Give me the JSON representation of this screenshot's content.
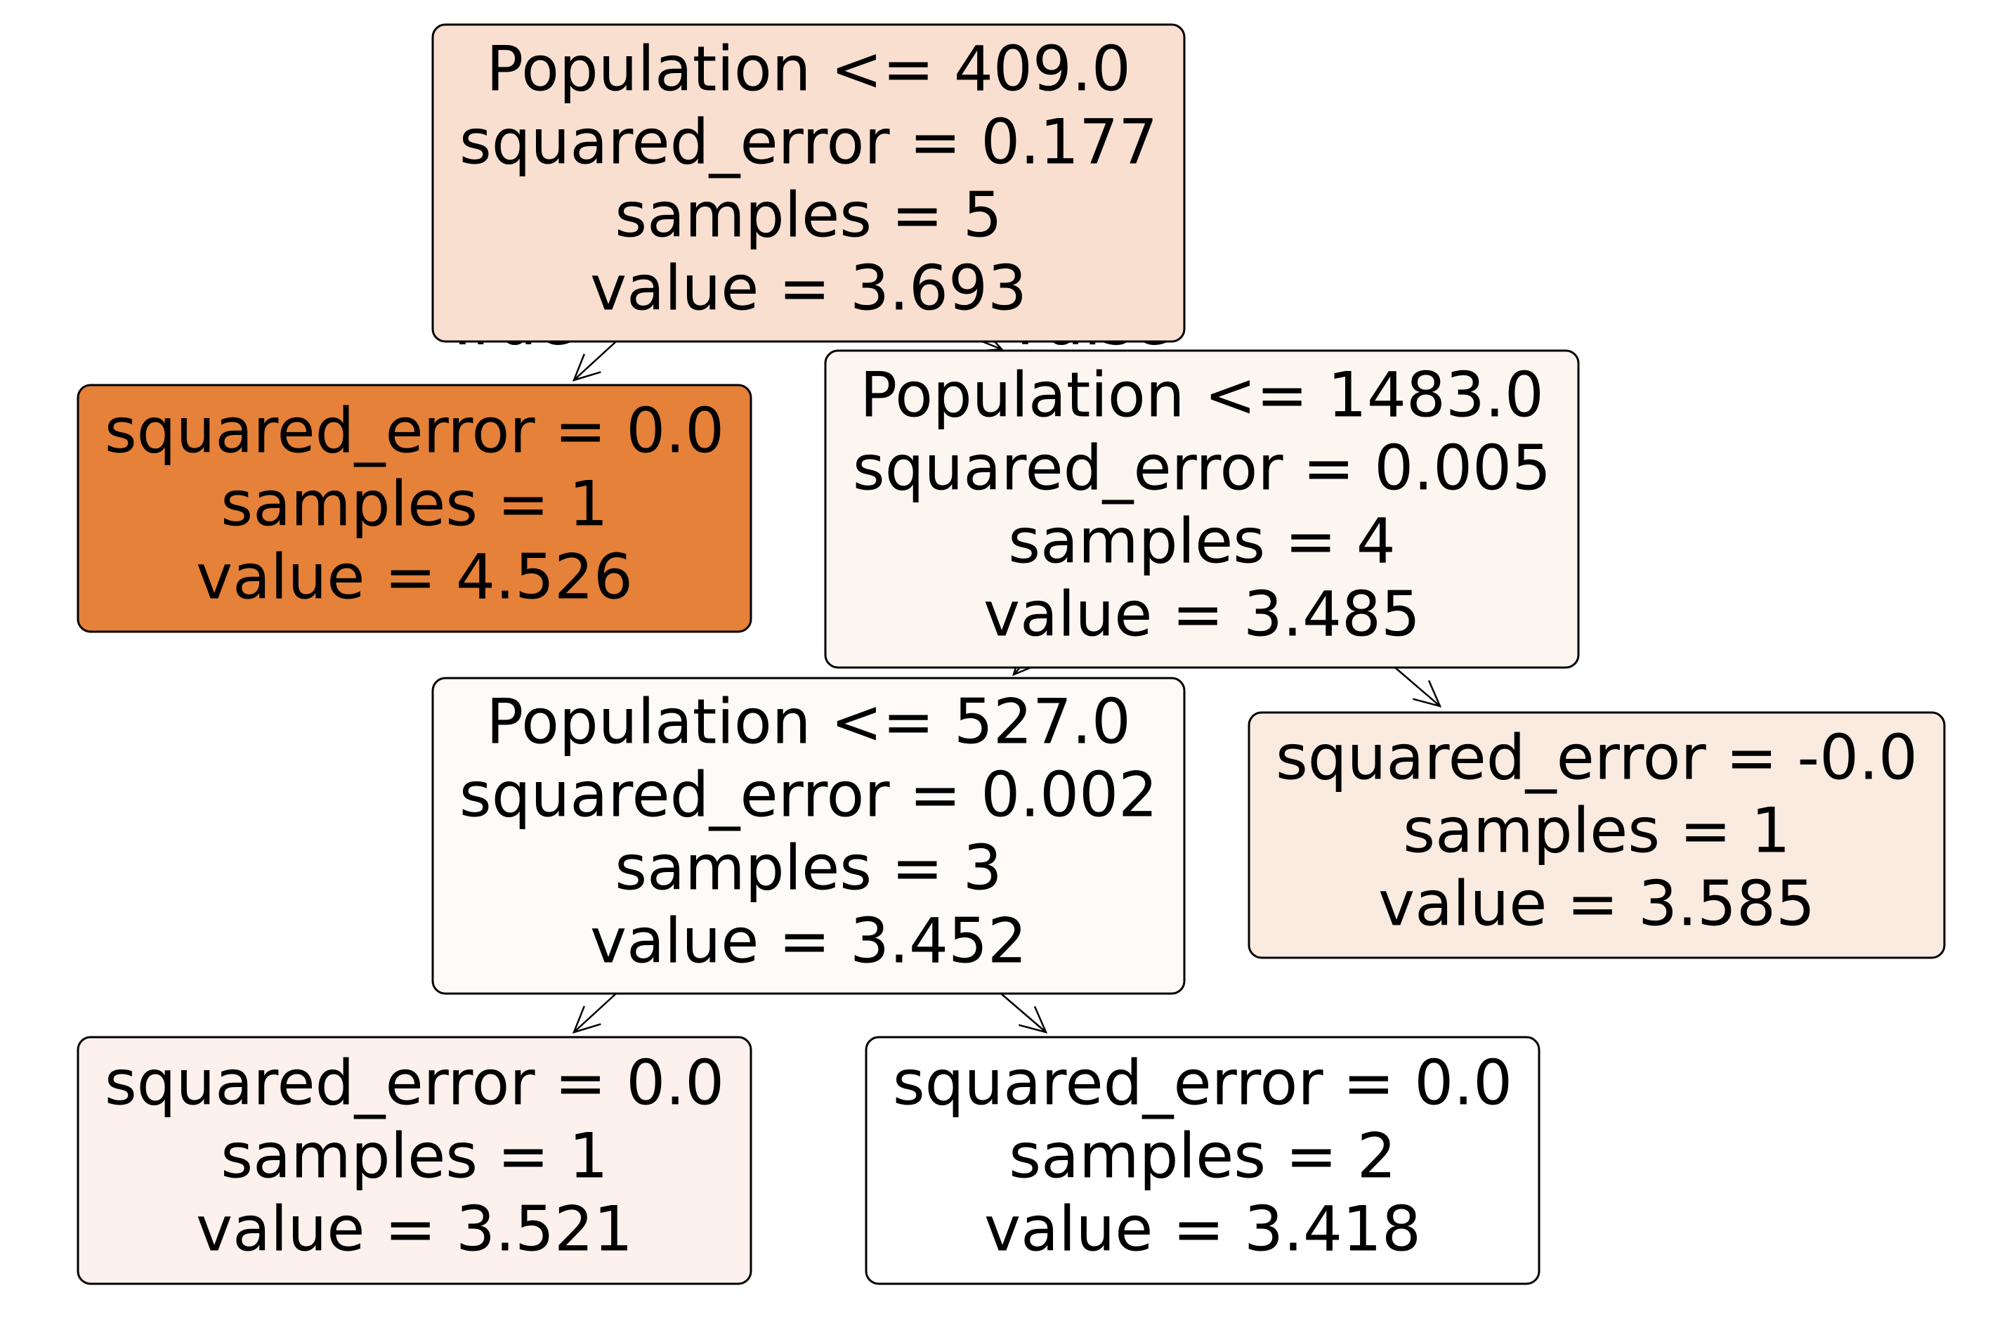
{
  "nodes": [
    {
      "lines": [
        "Population <= 409.0",
        "squared_error = 0.177",
        "samples = 5",
        "value = 3.693"
      ],
      "color": "#f8dfd0"
    },
    {
      "lines": [
        "squared_error = 0.0",
        "samples = 1",
        "value = 4.526"
      ],
      "color": "#e58139"
    },
    {
      "lines": [
        "Population <= 1483.0",
        "squared_error = 0.005",
        "samples = 4",
        "value = 3.485"
      ],
      "color": "#fcf6f1"
    },
    {
      "lines": [
        "Population <= 527.0",
        "squared_error = 0.002",
        "samples = 3",
        "value = 3.452"
      ],
      "color": "#fefaf7"
    },
    {
      "lines": [
        "squared_error = -0.0",
        "samples = 1",
        "value = 3.585"
      ],
      "color": "#f9ebdf"
    },
    {
      "lines": [
        "squared_error = 0.0",
        "samples = 1",
        "value = 3.521"
      ],
      "color": "#fcf1ec"
    },
    {
      "lines": [
        "squared_error = 0.0",
        "samples = 2",
        "value = 3.418"
      ],
      "color": "#ffffff"
    }
  ],
  "edge_labels": {
    "true": "True",
    "false": "False"
  }
}
